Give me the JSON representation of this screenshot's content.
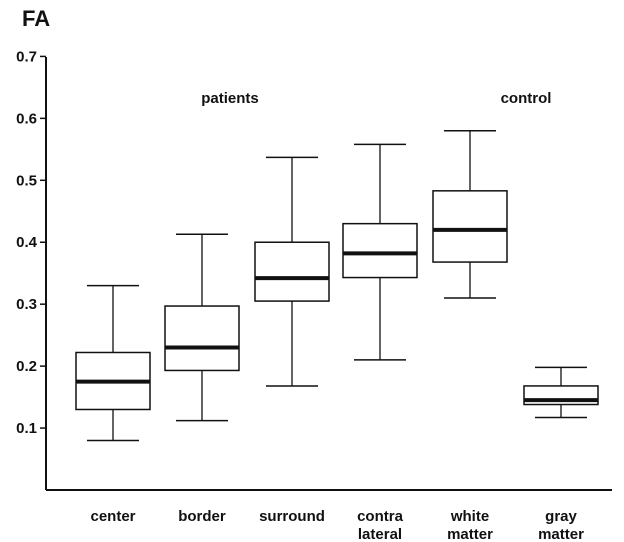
{
  "chart_data": {
    "type": "boxplot",
    "title": "FA",
    "ylim": [
      0,
      0.7
    ],
    "y_ticks": [
      "0.7",
      "0.6",
      "0.5",
      "0.4",
      "0.3",
      "0.2",
      "0.1"
    ],
    "y_tick_values": [
      0.7,
      0.6,
      0.5,
      0.4,
      0.3,
      0.2,
      0.1
    ],
    "groups": [
      {
        "label": "patients",
        "categories": [
          0,
          1,
          2,
          3
        ]
      },
      {
        "label": "control",
        "categories": [
          4,
          5
        ]
      }
    ],
    "categories": [
      {
        "line1": "center",
        "line2": ""
      },
      {
        "line1": "border",
        "line2": ""
      },
      {
        "line1": "surround",
        "line2": ""
      },
      {
        "line1": "contra",
        "line2": "lateral"
      },
      {
        "line1": "white",
        "line2": "matter"
      },
      {
        "line1": "gray",
        "line2": "matter"
      }
    ],
    "boxes": [
      {
        "min": 0.08,
        "q1": 0.13,
        "median": 0.175,
        "q3": 0.222,
        "max": 0.33
      },
      {
        "min": 0.112,
        "q1": 0.193,
        "median": 0.23,
        "q3": 0.297,
        "max": 0.413
      },
      {
        "min": 0.168,
        "q1": 0.305,
        "median": 0.342,
        "q3": 0.4,
        "max": 0.537
      },
      {
        "min": 0.21,
        "q1": 0.343,
        "median": 0.382,
        "q3": 0.43,
        "max": 0.558
      },
      {
        "min": 0.31,
        "q1": 0.368,
        "median": 0.42,
        "q3": 0.483,
        "max": 0.58
      },
      {
        "min": 0.117,
        "q1": 0.138,
        "median": 0.145,
        "q3": 0.168,
        "max": 0.198
      }
    ],
    "colors": {
      "stroke": "#111111",
      "background": "#ffffff"
    }
  }
}
